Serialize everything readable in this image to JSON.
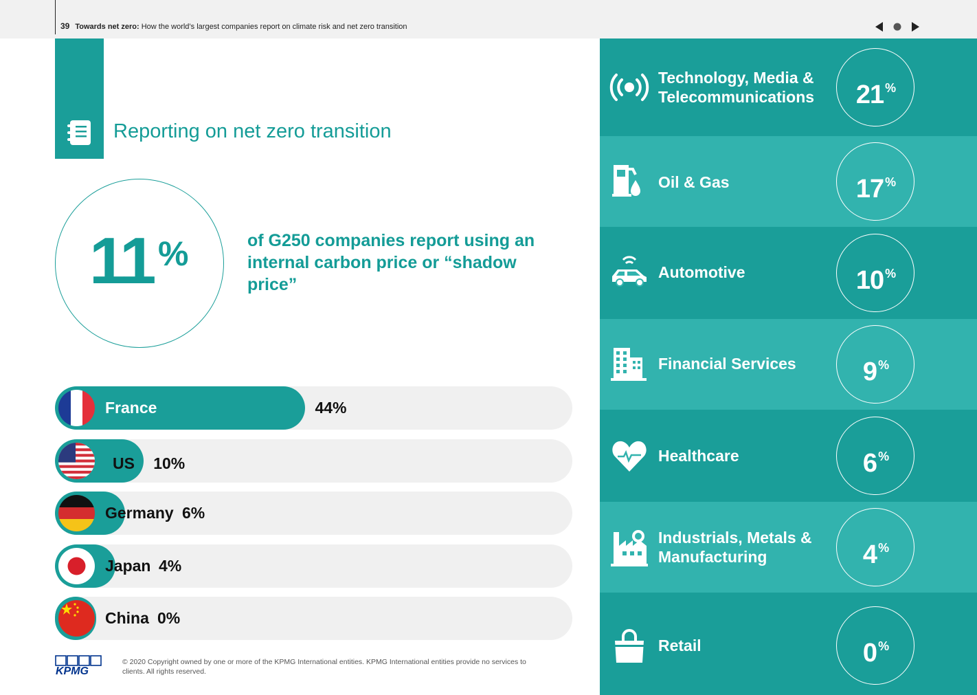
{
  "header": {
    "page_number": "39",
    "title_bold": "Towards net zero:",
    "title_rest": " How the world’s largest companies report on climate risk and net zero transition"
  },
  "section": {
    "title": "Reporting on net zero transition"
  },
  "stat": {
    "value": "11",
    "unit": "%",
    "description": "of G250 companies report using an internal carbon price or “shadow price”"
  },
  "countries": [
    {
      "name": "France",
      "value_label": "44%",
      "value": 44
    },
    {
      "name": "US",
      "value_label": "10%",
      "value": 10
    },
    {
      "name": "Germany",
      "value_label": "6%",
      "value": 6
    },
    {
      "name": "Japan",
      "value_label": "4%",
      "value": 4
    },
    {
      "name": "China",
      "value_label": "0%",
      "value": 0
    }
  ],
  "sectors": [
    {
      "label": "Technology, Media & Telecommunications",
      "value": "21",
      "unit": "%",
      "icon": "broadcast-icon"
    },
    {
      "label": "Oil & Gas",
      "value": "17",
      "unit": "%",
      "icon": "oil-pump-icon"
    },
    {
      "label": "Automotive",
      "value": "10",
      "unit": "%",
      "icon": "connected-car-icon"
    },
    {
      "label": "Financial Services",
      "value": "9",
      "unit": "%",
      "icon": "office-building-icon"
    },
    {
      "label": "Healthcare",
      "value": "6",
      "unit": "%",
      "icon": "heart-pulse-icon"
    },
    {
      "label": "Industrials, Metals & Manufacturing",
      "value": "4",
      "unit": "%",
      "icon": "factory-gear-icon"
    },
    {
      "label": "Retail",
      "value": "0",
      "unit": "%",
      "icon": "shopping-bag-icon"
    }
  ],
  "footer": {
    "logo": "KPMG",
    "copyright": "© 2020 Copyright owned by one or more of the KPMG International entities. KPMG International entities provide no services to clients.  All rights reserved."
  },
  "colors": {
    "teal": "#1a9e99",
    "teal_light": "#32b3ae",
    "track": "#f0f0f0",
    "kpmg_blue": "#00338d"
  }
}
